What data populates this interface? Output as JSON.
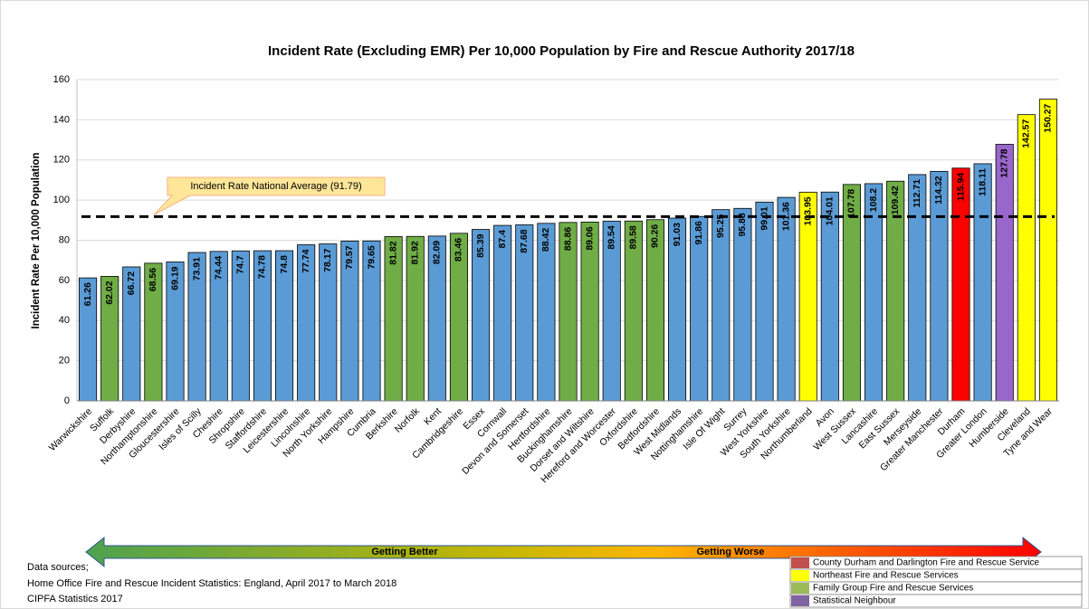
{
  "chart_data": {
    "type": "bar",
    "title": "Incident Rate (Excluding EMR) Per 10,000 Population by Fire and Rescue Authority 2017/18",
    "y_label": "Incident Rate Per 10,000 Population",
    "categories": [
      "Warwickshire",
      "Suffolk",
      "Derbyshire",
      "Northamptonshire",
      "Gloucestershire",
      "Isles of Scilly",
      "Cheshire",
      "Shropshire",
      "Staffordshire",
      "Leicestershire",
      "Lincolnshire",
      "North Yorkshire",
      "Hampshire",
      "Cumbria",
      "Berkshire",
      "Norfolk",
      "Kent",
      "Cambridgeshire",
      "Essex",
      "Cornwall",
      "Devon and Somerset",
      "Hertfordshire",
      "Buckinghamshire",
      "Dorset and Wiltshire",
      "Hereford and Worcester",
      "Oxfordshire",
      "Bedfordshire",
      "West Midlands",
      "Nottinghamshire",
      "Isle Of Wight",
      "Surrey",
      "West Yorkshire",
      "South Yorkshire",
      "Northumberland",
      "Avon",
      "West Sussex",
      "Lancashire",
      "East Sussex",
      "Merseyside",
      "Greater Manchester",
      "Durham",
      "Greater London",
      "Humberside",
      "Cleveland",
      "Tyne and Wear"
    ],
    "values": [
      61.26,
      62.02,
      66.72,
      68.56,
      69.19,
      73.91,
      74.44,
      74.7,
      74.78,
      74.8,
      77.74,
      78.17,
      79.57,
      79.65,
      81.82,
      81.92,
      82.09,
      83.46,
      85.39,
      87.4,
      87.68,
      88.42,
      88.86,
      89.06,
      89.54,
      89.58,
      90.26,
      91.03,
      91.86,
      95.25,
      95.88,
      99.01,
      101.36,
      103.95,
      104.01,
      107.78,
      108.2,
      109.42,
      112.71,
      114.32,
      115.94,
      118.11,
      127.78,
      142.57,
      150.27
    ],
    "colors": [
      "#5b9bd5",
      "#70ad47",
      "#5b9bd5",
      "#70ad47",
      "#5b9bd5",
      "#5b9bd5",
      "#5b9bd5",
      "#5b9bd5",
      "#5b9bd5",
      "#5b9bd5",
      "#5b9bd5",
      "#5b9bd5",
      "#5b9bd5",
      "#5b9bd5",
      "#70ad47",
      "#70ad47",
      "#5b9bd5",
      "#70ad47",
      "#5b9bd5",
      "#5b9bd5",
      "#5b9bd5",
      "#5b9bd5",
      "#70ad47",
      "#70ad47",
      "#5b9bd5",
      "#70ad47",
      "#70ad47",
      "#5b9bd5",
      "#5b9bd5",
      "#5b9bd5",
      "#5b9bd5",
      "#5b9bd5",
      "#5b9bd5",
      "#ffff00",
      "#5b9bd5",
      "#70ad47",
      "#5b9bd5",
      "#70ad47",
      "#5b9bd5",
      "#5b9bd5",
      "#ff0000",
      "#5b9bd5",
      "#9966cc",
      "#ffff00",
      "#ffff00"
    ],
    "ylim": [
      0,
      160
    ],
    "yticks": [
      0,
      20,
      40,
      60,
      80,
      100,
      120,
      140,
      160
    ],
    "grid": true,
    "average": 91.79,
    "annotation": "Incident Rate National Average (91.79)",
    "legend": [
      {
        "name": "County Durham and Darlington Fire and Rescue Service",
        "color": "#c0504d"
      },
      {
        "name": "Northeast Fire and Rescue Services",
        "color": "#ffff00"
      },
      {
        "name": "Family Group Fire and Rescue Services",
        "color": "#9bbb59"
      },
      {
        "name": "Statistical Neighbour",
        "color": "#8064a2"
      }
    ],
    "arrow_labels": [
      "Getting Better",
      "Getting Worse"
    ],
    "sources": [
      "Data sources;",
      "Home Office Fire and Rescue Incident Statistics: England, April 2017 to March 2018",
      "CIPFA Statistics 2017"
    ]
  }
}
